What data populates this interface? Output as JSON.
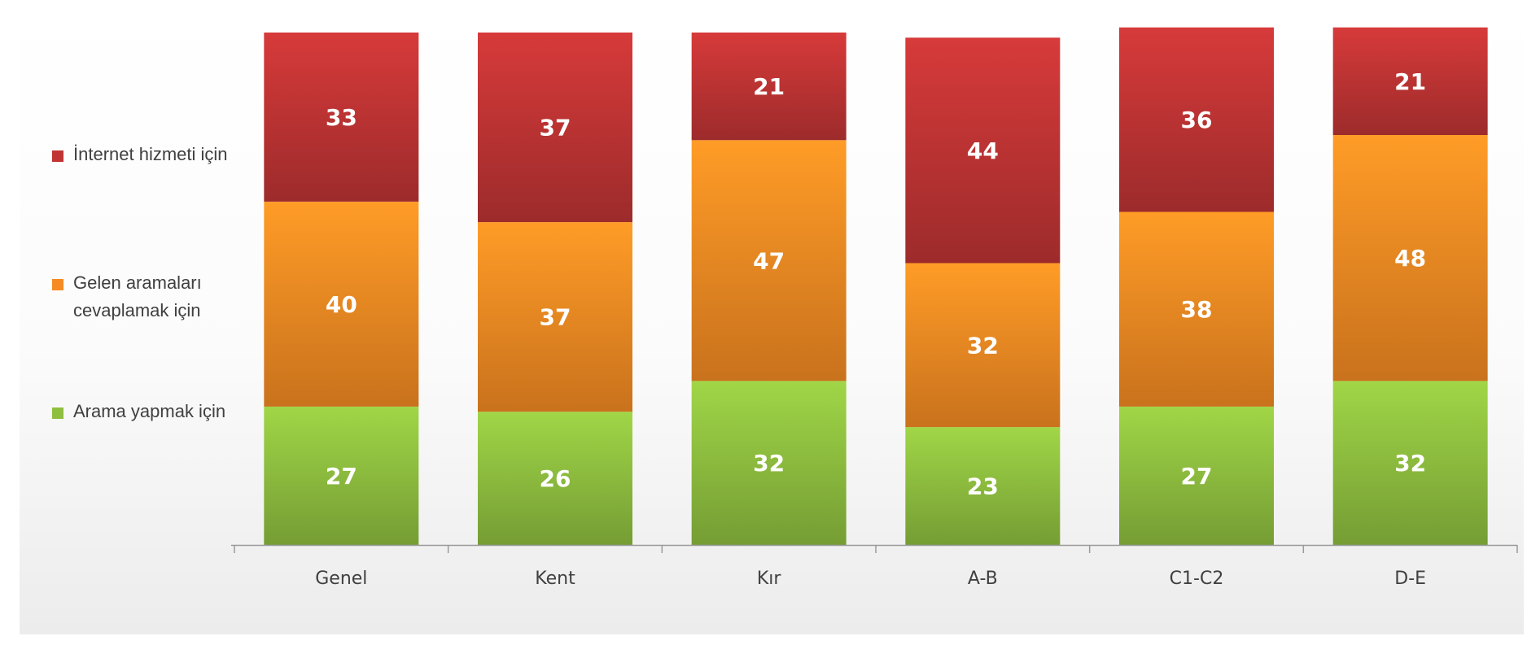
{
  "chart_data": {
    "type": "bar",
    "stacked": true,
    "title": "",
    "xlabel": "",
    "ylabel": "",
    "ylim": [
      0,
      100
    ],
    "categories": [
      "Genel",
      "Kent",
      "Kır",
      "A-B",
      "C1-C2",
      "D-E"
    ],
    "series": [
      {
        "name": "Arama yapmak için",
        "values": [
          27,
          26,
          32,
          23,
          27,
          32
        ],
        "color": "#8fbf3f"
      },
      {
        "name": "Gelen aramaları cevaplamak için",
        "values": [
          40,
          37,
          47,
          32,
          38,
          48
        ],
        "color": "#f58b23"
      },
      {
        "name": "İnternet hizmeti için",
        "values": [
          33,
          37,
          21,
          44,
          36,
          21
        ],
        "color": "#c03434"
      }
    ],
    "legend_position": "left",
    "legend_order": [
      2,
      1,
      0
    ],
    "grid": false,
    "data_labels": true
  }
}
